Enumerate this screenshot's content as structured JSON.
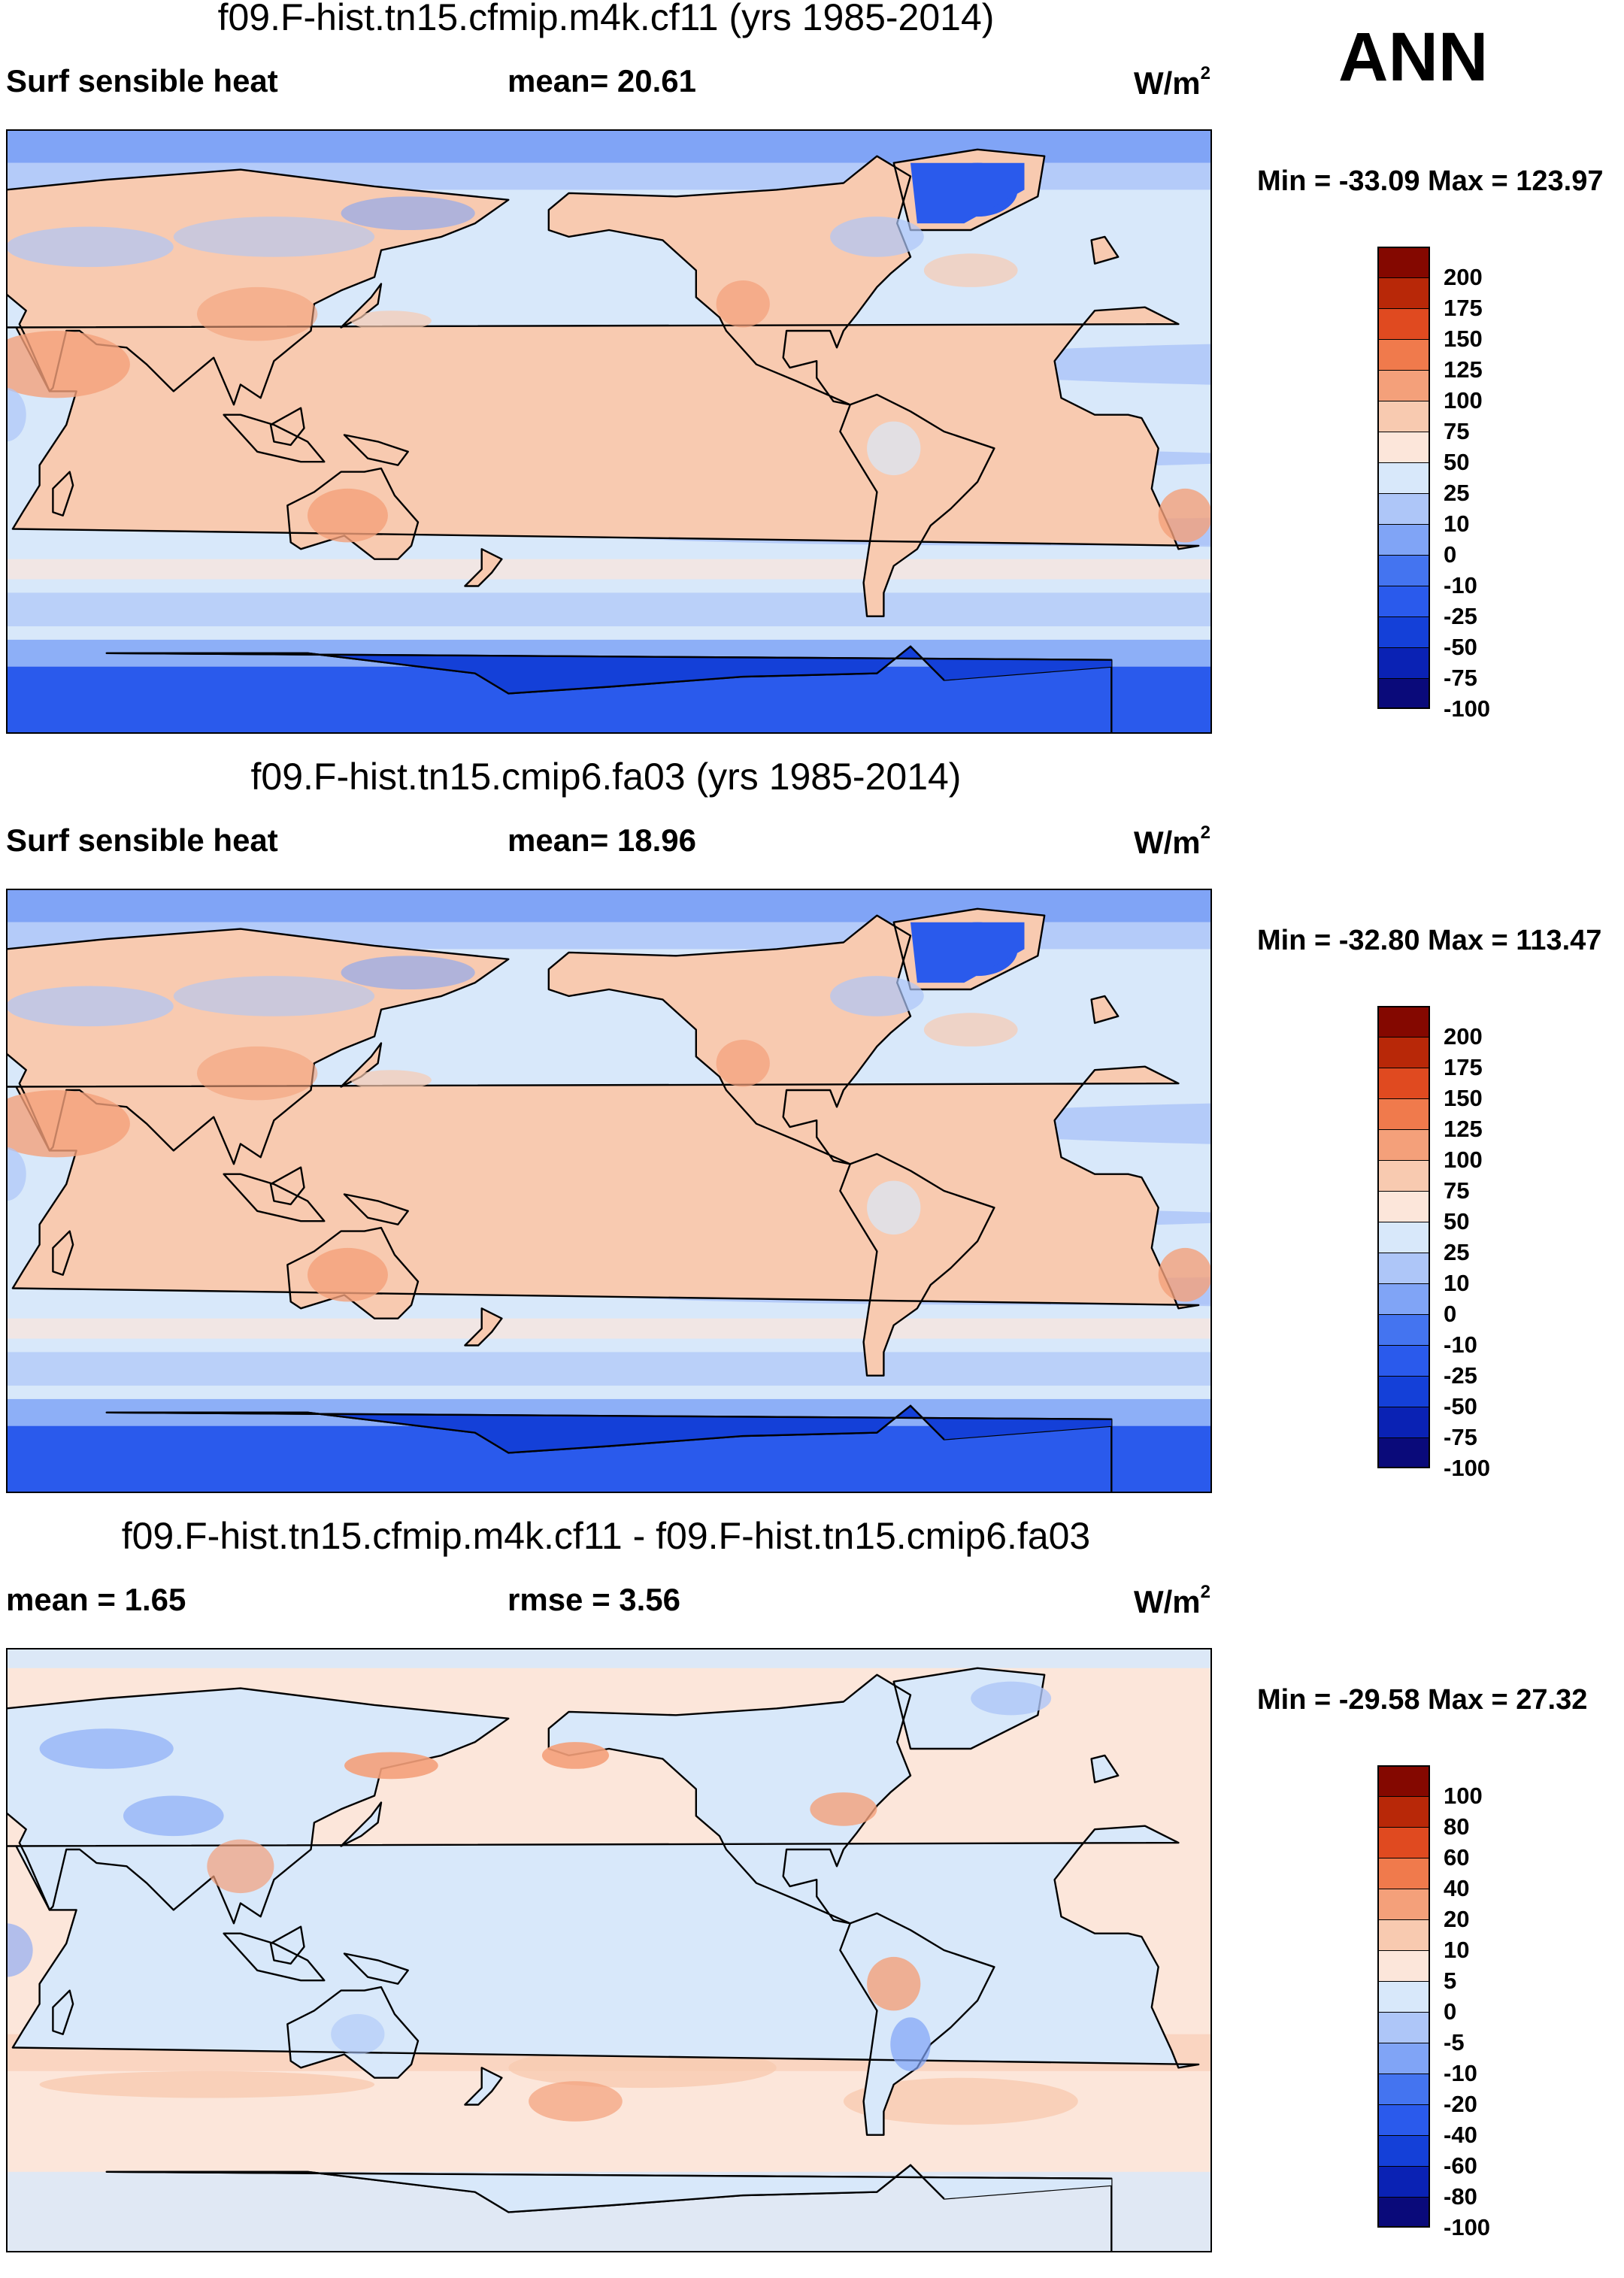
{
  "season": "ANN",
  "colors": {
    "abs_palette": [
      "#0a0a7a",
      "#0a22b4",
      "#1440d8",
      "#2a5aec",
      "#4474f0",
      "#80a4f6",
      "#aec6f8",
      "#d8e8fa",
      "#fce6da",
      "#f8cab0",
      "#f4a07a",
      "#f07a4c",
      "#e04a20",
      "#b82808",
      "#840800"
    ],
    "diff_palette": [
      "#0a0a7a",
      "#0a22b4",
      "#1440d8",
      "#2a5aec",
      "#4474f0",
      "#80a4f6",
      "#aec6f8",
      "#d8e8fa",
      "#fce6da",
      "#f8cab0",
      "#f4a07a",
      "#f07a4c",
      "#e04a20",
      "#b82808",
      "#840800"
    ]
  },
  "panels": [
    {
      "title": "f09.F-hist.tn15.cfmip.m4k.cf11 (yrs 1985-2014)",
      "left_label": "Surf sensible heat",
      "mid_label": "mean=  20.61",
      "unit": "W/m",
      "unit_sup": "2",
      "minmax": "Min = -33.09 Max = 123.97",
      "kind": "abs",
      "levels": [
        "200",
        "175",
        "150",
        "125",
        "100",
        "75",
        "50",
        "25",
        "10",
        "0",
        "-10",
        "-25",
        "-50",
        "-75",
        "-100"
      ]
    },
    {
      "title": "f09.F-hist.tn15.cmip6.fa03 (yrs 1985-2014)",
      "left_label": "Surf sensible heat",
      "mid_label": "mean=  18.96",
      "unit": "W/m",
      "unit_sup": "2",
      "minmax": "Min = -32.80 Max = 113.47",
      "kind": "abs",
      "levels": [
        "200",
        "175",
        "150",
        "125",
        "100",
        "75",
        "50",
        "25",
        "10",
        "0",
        "-10",
        "-25",
        "-50",
        "-75",
        "-100"
      ]
    },
    {
      "title": "f09.F-hist.tn15.cfmip.m4k.cf11 - f09.F-hist.tn15.cmip6.fa03",
      "left_label": "mean =   1.65",
      "mid_label": "rmse =   3.56",
      "unit": "W/m",
      "unit_sup": "2",
      "minmax": "Min = -29.58 Max =  27.32",
      "kind": "diff",
      "levels": [
        "100",
        "80",
        "60",
        "40",
        "20",
        "10",
        "5",
        "0",
        "-5",
        "-10",
        "-20",
        "-40",
        "-60",
        "-80",
        "-100"
      ]
    }
  ]
}
